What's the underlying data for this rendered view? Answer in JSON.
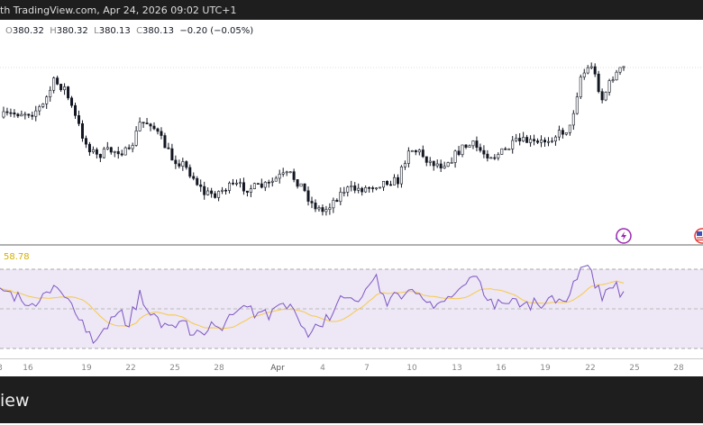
{
  "header": {
    "text": "th TradingView.com, Apr 24, 2026 09:02 UTC+1"
  },
  "ohlc": {
    "o_label": "O",
    "o": "380.32",
    "h_label": "H",
    "h": "380.32",
    "l_label": "L",
    "l": "380.13",
    "c_label": "C",
    "c": "380.13",
    "change": "−0.20 (−0.05%)"
  },
  "rsi": {
    "value": "58.78",
    "upper_band": 70,
    "lower_band": 30,
    "line_color": "#7e57c2",
    "ma_color": "#f7c948",
    "band_fill": "#ede7f6"
  },
  "footer": {
    "logo_text": "iew"
  },
  "colors": {
    "candle": "#131722",
    "frame": "#1e1e1e"
  },
  "icons": [
    "lightning-icon",
    "us-flag-icon"
  ],
  "chart_data": [
    {
      "type": "candlestick",
      "title": "",
      "xlabel": "",
      "ylabel": "",
      "x_ticks": [
        "3",
        "16",
        "19",
        "22",
        "25",
        "28",
        "Apr",
        "4",
        "7",
        "10",
        "13",
        "16",
        "19",
        "22",
        "25",
        "28"
      ],
      "closes": [
        371.9,
        372.35,
        372.65,
        372.65,
        373.85,
        377.75,
        376.7,
        371.9,
        367.4,
        365.45,
        366.2,
        366.35,
        365.9,
        370.85,
        371.0,
        368.15,
        365.0,
        364.1,
        361.85,
        359.15,
        359.15,
        360.05,
        360.5,
        360.05,
        360.2,
        360.65,
        362.0,
        362.3,
        360.5,
        357.5,
        356.15,
        357.95,
        359.75,
        359.9,
        360.05,
        360.65,
        361.25,
        361.25,
        366.65,
        366.05,
        364.4,
        363.95,
        365.0,
        366.8,
        367.25,
        365.9,
        365.45,
        366.35,
        367.7,
        367.85,
        367.4,
        368.3,
        369.2,
        370.1,
        378.65,
        380.6,
        374.9,
        378.65,
        380.13
      ]
    },
    {
      "type": "line",
      "title": "",
      "ylim": [
        0,
        100
      ],
      "values": [
        60.5,
        58.6,
        54.1,
        52.7,
        57.7,
        61.8,
        55.9,
        47.7,
        38.2,
        34.5,
        40.0,
        48.2,
        40.9,
        59.5,
        46.8,
        40.5,
        41.8,
        44.1,
        36.8,
        36.8,
        41.4,
        43.6,
        48.6,
        50.9,
        48.2,
        44.5,
        52.3,
        52.3,
        41.4,
        38.6,
        40.9,
        48.2,
        55.5,
        54.1,
        60.0,
        67.3,
        51.4,
        57.7,
        59.5,
        57.7,
        53.6,
        53.6,
        55.9,
        61.4,
        66.4,
        56.8,
        50.0,
        52.7,
        55.0,
        53.6,
        52.3,
        55.5,
        55.0,
        57.3,
        70.9,
        69.5,
        54.1,
        60.5,
        58.78
      ]
    }
  ]
}
